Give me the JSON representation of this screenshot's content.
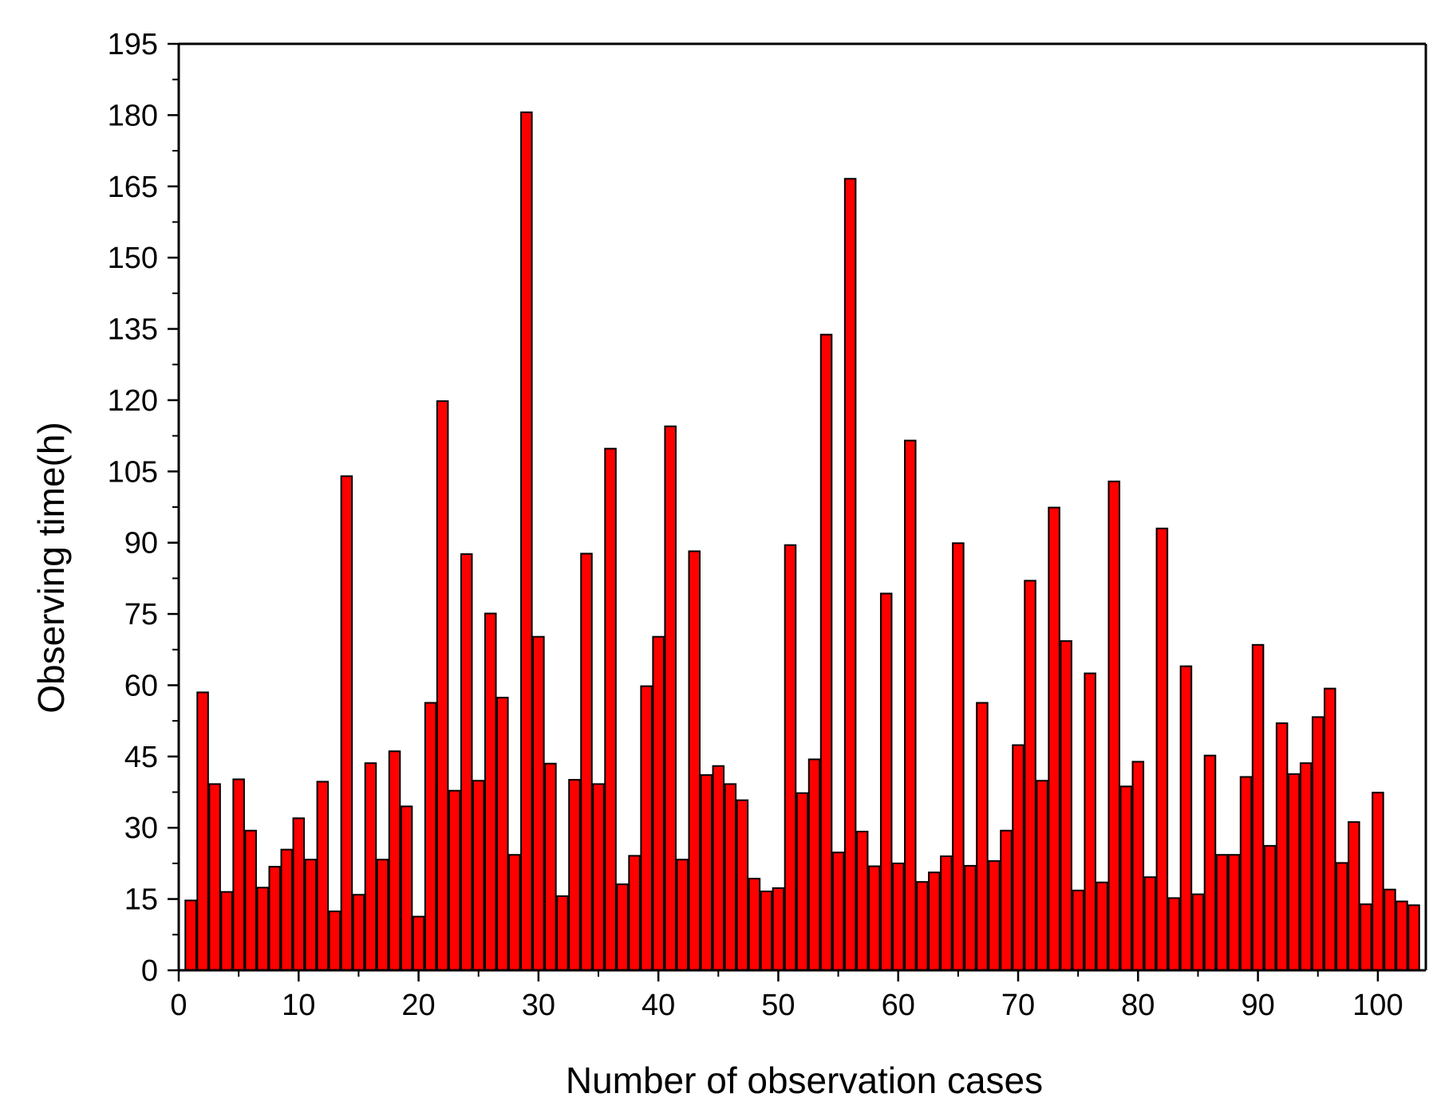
{
  "chart_data": {
    "type": "bar",
    "title": "",
    "xlabel": "Number of observation cases",
    "ylabel": "Observing time(h)",
    "xlim": [
      0,
      104
    ],
    "ylim": [
      0,
      195
    ],
    "xticks": [
      0,
      10,
      20,
      30,
      40,
      50,
      60,
      70,
      80,
      90,
      100
    ],
    "xtick_labels": [
      "0",
      "10",
      "20",
      "30",
      "40",
      "50",
      "60",
      "70",
      "80",
      "90",
      "100"
    ],
    "yticks": [
      0,
      15,
      30,
      45,
      60,
      75,
      90,
      105,
      120,
      135,
      150,
      165,
      180,
      195
    ],
    "ytick_labels": [
      "0",
      "15",
      "30",
      "45",
      "60",
      "75",
      "90",
      "105",
      "120",
      "135",
      "150",
      "165",
      "180",
      "195"
    ],
    "grid": false,
    "bar_color": "#ff0000",
    "edge_color": "#000000",
    "categories": [
      1,
      2,
      3,
      4,
      5,
      6,
      7,
      8,
      9,
      10,
      11,
      12,
      13,
      14,
      15,
      16,
      17,
      18,
      19,
      20,
      21,
      22,
      23,
      24,
      25,
      26,
      27,
      28,
      29,
      30,
      31,
      32,
      33,
      34,
      35,
      36,
      37,
      38,
      39,
      40,
      41,
      42,
      43,
      44,
      45,
      46,
      47,
      48,
      49,
      50,
      51,
      52,
      53,
      54,
      55,
      56,
      57,
      58,
      59,
      60,
      61,
      62,
      63,
      64,
      65,
      66,
      67,
      68,
      69,
      70,
      71,
      72,
      73,
      74,
      75,
      76,
      77,
      78,
      79,
      80,
      81,
      82,
      83,
      84,
      85,
      86,
      87,
      88,
      89,
      90,
      91,
      92,
      93,
      94,
      95,
      96,
      97,
      98,
      99,
      100,
      101,
      102,
      103
    ],
    "values": [
      14.7,
      58.5,
      39.2,
      16.5,
      40.2,
      29.4,
      17.4,
      21.8,
      25.4,
      32.0,
      23.3,
      39.7,
      12.4,
      104.0,
      15.9,
      43.6,
      23.3,
      46.1,
      34.5,
      11.3,
      56.3,
      119.8,
      37.8,
      87.6,
      39.9,
      75.1,
      57.4,
      24.3,
      180.6,
      70.2,
      43.5,
      15.6,
      40.1,
      87.7,
      39.2,
      109.8,
      18.1,
      24.1,
      59.8,
      70.2,
      114.5,
      23.3,
      88.2,
      41.1,
      43.0,
      39.2,
      35.8,
      19.3,
      16.6,
      17.3,
      89.5,
      37.3,
      44.4,
      133.8,
      24.8,
      166.6,
      29.2,
      21.9,
      79.3,
      22.5,
      111.5,
      18.6,
      20.6,
      24.0,
      89.9,
      22.0,
      56.3,
      23.0,
      29.4,
      47.4,
      82.0,
      39.9,
      97.4,
      69.3,
      16.8,
      62.5,
      18.5,
      102.9,
      38.7,
      43.9,
      19.6,
      93.0,
      15.2,
      64.0,
      16.0,
      45.2,
      24.3,
      24.3,
      40.7,
      68.5,
      26.2,
      52.0,
      41.3,
      43.6,
      53.3,
      59.3,
      22.6,
      31.2,
      13.9,
      37.4,
      17.0,
      14.5,
      13.7
    ]
  }
}
